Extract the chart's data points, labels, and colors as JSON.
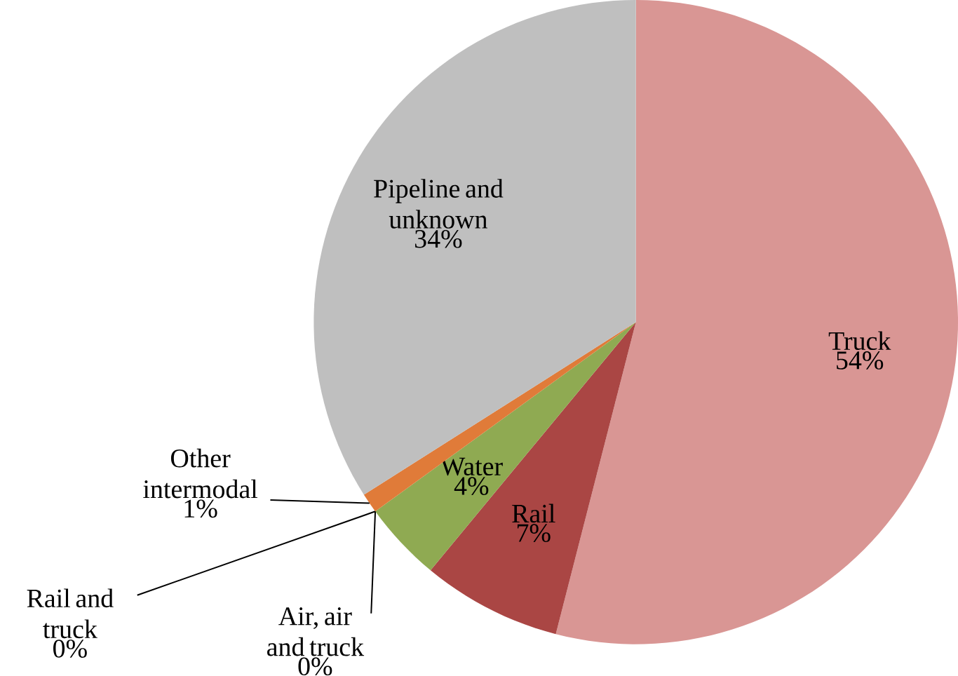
{
  "chart_data": {
    "type": "pie",
    "categories": [
      "Truck",
      "Rail",
      "Water",
      "Air, air and truck",
      "Rail and truck",
      "Other intermodal",
      "Pipeline and unknown"
    ],
    "values": [
      54,
      7,
      4,
      0,
      0,
      1,
      34
    ],
    "colors": [
      "#d99694",
      "#aa4644",
      "#8faa52",
      "#4f81bd",
      "#7f7f7f",
      "#e07b39",
      "#bfbfbf"
    ],
    "value_labels": [
      "54%",
      "7%",
      "4%",
      "0%",
      "0%",
      "1%",
      "34%"
    ]
  }
}
